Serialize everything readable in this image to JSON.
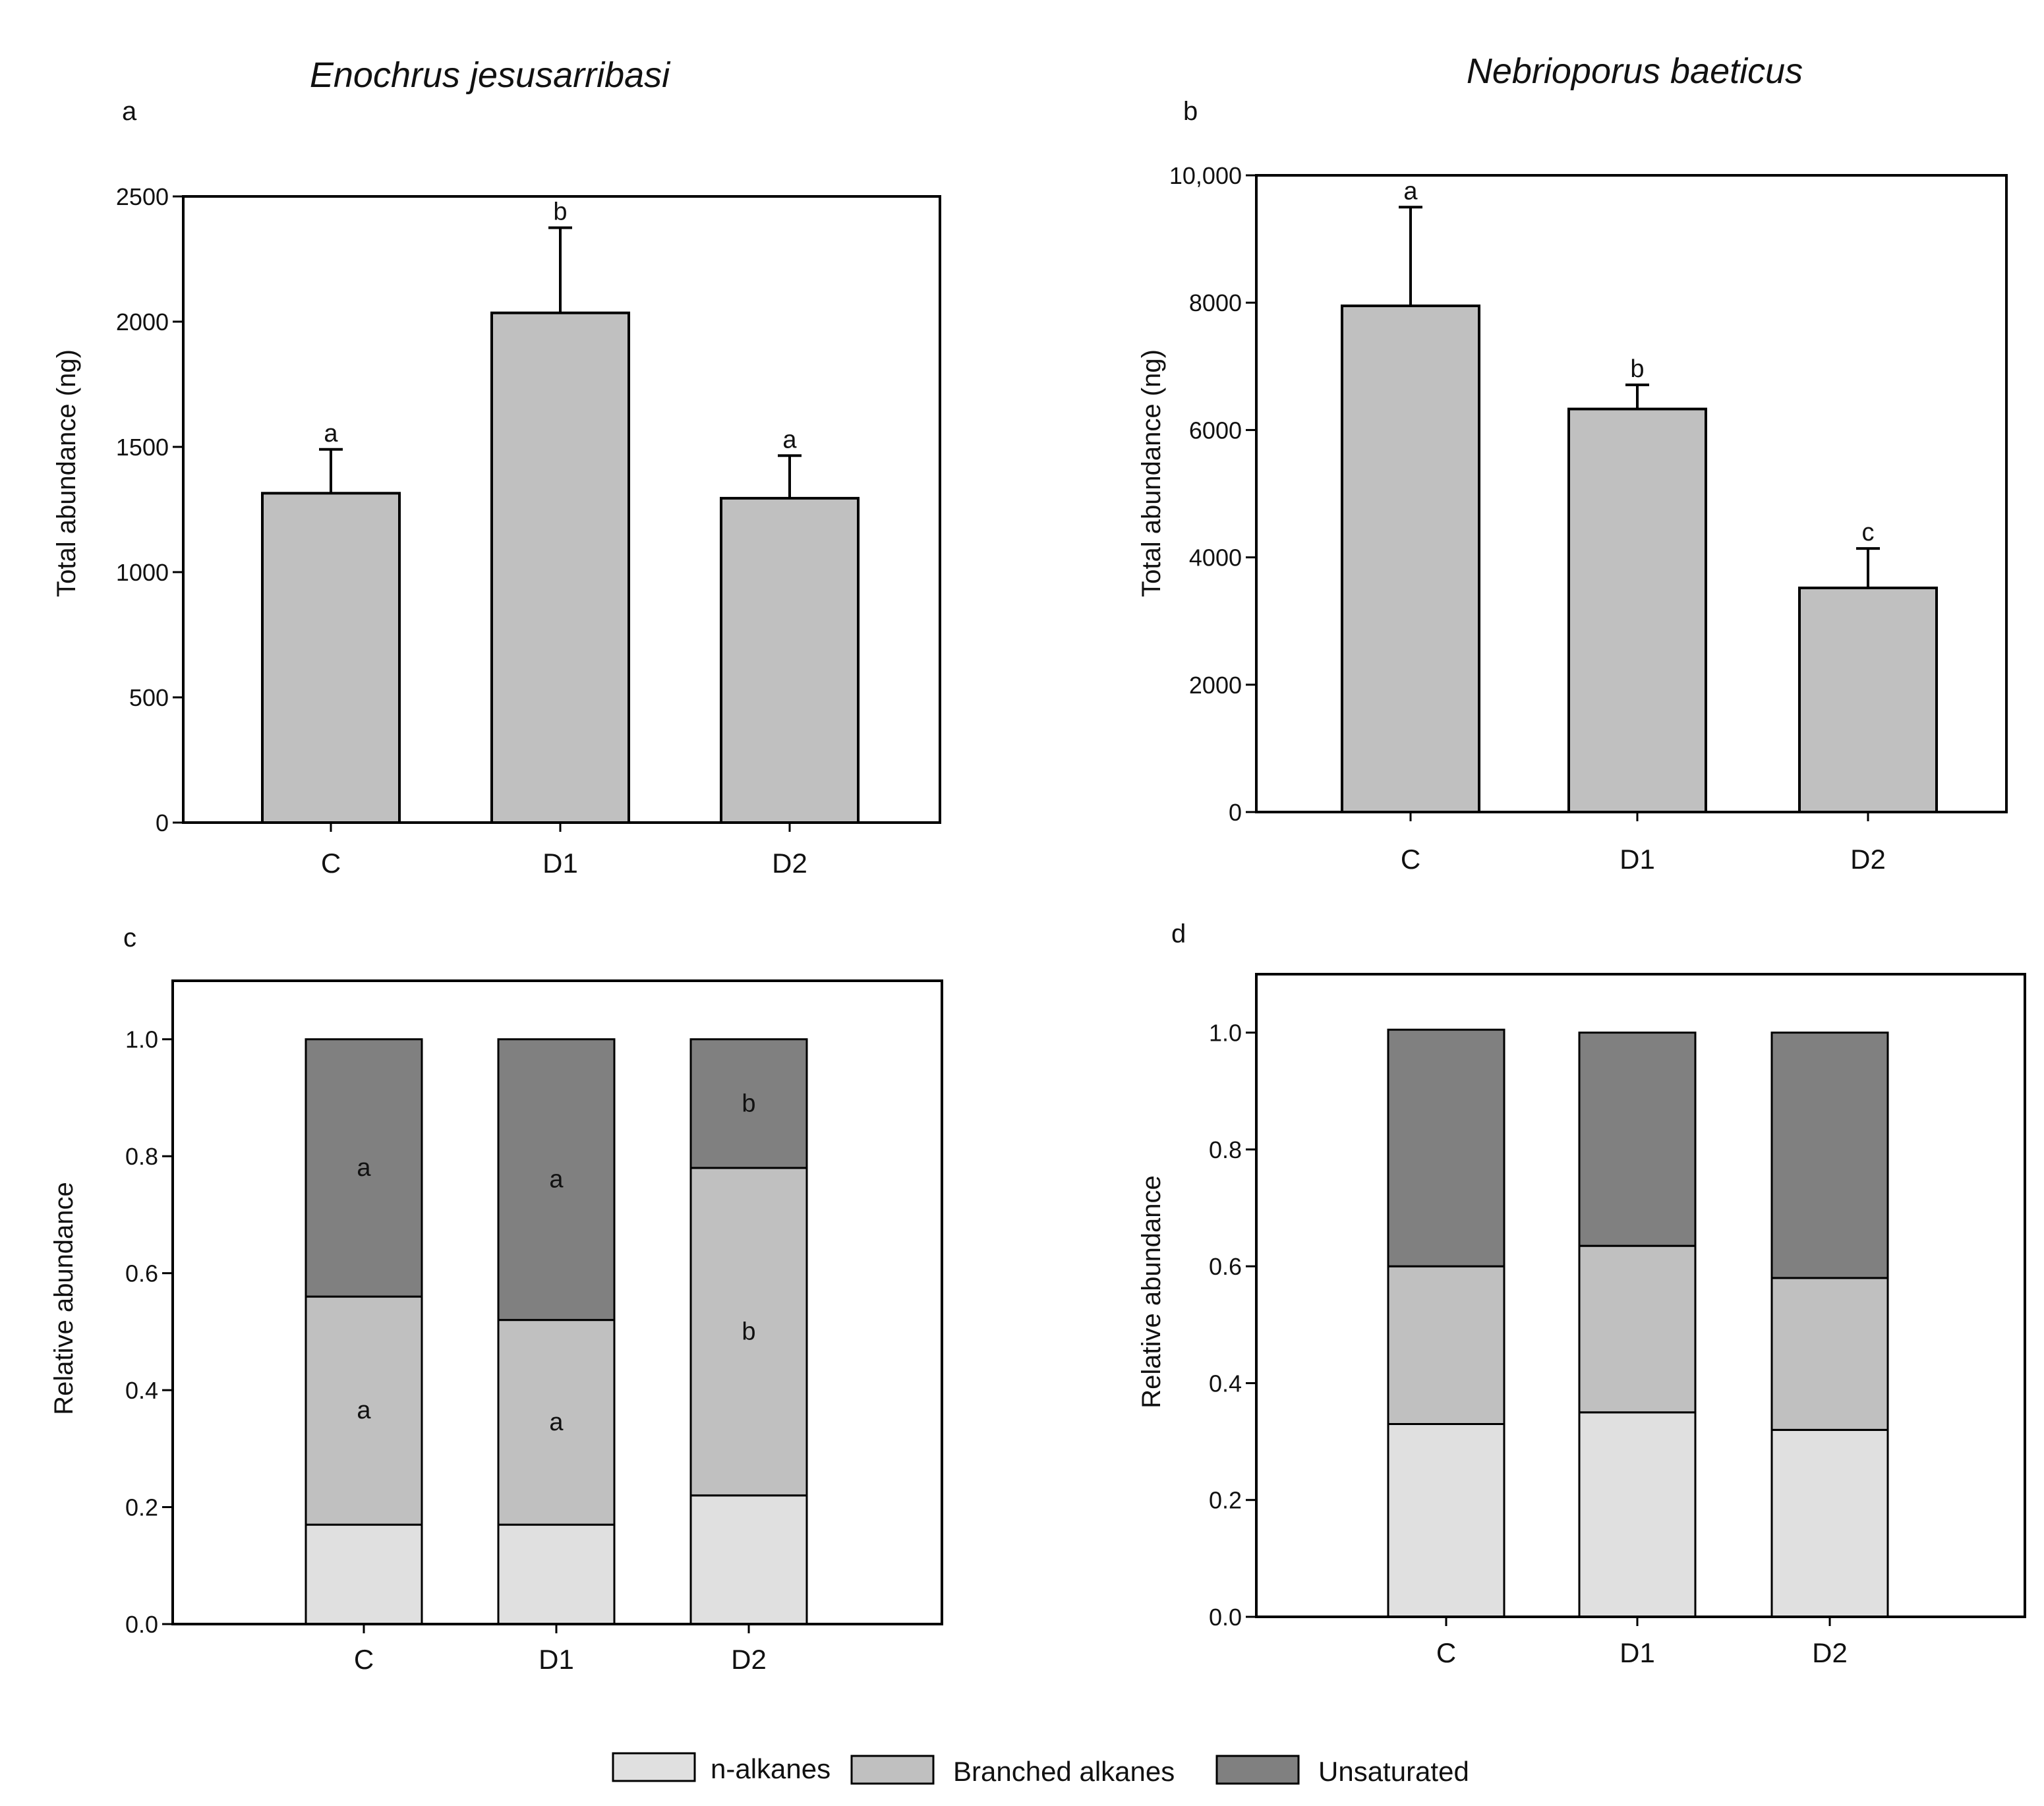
{
  "figure": {
    "legend": [
      {
        "key": "n_alkanes",
        "label": "n-alkanes",
        "color": "#e0e0e0"
      },
      {
        "key": "branched",
        "label": "Branched alkanes",
        "color": "#c0c0c0"
      },
      {
        "key": "unsaturated",
        "label": "Unsaturated",
        "color": "#808080"
      }
    ]
  },
  "chart_data": [
    {
      "id": "a",
      "type": "bar",
      "panel_label": "a",
      "title": "Enochrus jesusarribasi",
      "ylabel": "Total abundance (ng)",
      "xlabel": "",
      "ylim": [
        0,
        2500
      ],
      "yticks": [
        0,
        500,
        1000,
        1500,
        2000,
        2500
      ],
      "ytick_labels": [
        "0",
        "500",
        "1000",
        "1500",
        "2000",
        "2500"
      ],
      "categories": [
        "C",
        "D1",
        "D2"
      ],
      "values": [
        1315,
        2035,
        1295
      ],
      "errors": [
        175,
        340,
        170
      ],
      "letters": [
        "a",
        "b",
        "a"
      ],
      "color": "#c0c0c0",
      "grid": false
    },
    {
      "id": "b",
      "type": "bar",
      "panel_label": "b",
      "title": "Nebrioporus baeticus",
      "ylabel": "Total abundance (ng)",
      "xlabel": "",
      "ylim": [
        0,
        10000
      ],
      "yticks": [
        0,
        2000,
        4000,
        6000,
        8000,
        10000
      ],
      "ytick_labels": [
        "0",
        "2000",
        "4000",
        "6000",
        "8000",
        "10,000"
      ],
      "categories": [
        "C",
        "D1",
        "D2"
      ],
      "values": [
        7950,
        6330,
        3520
      ],
      "errors": [
        1550,
        380,
        620
      ],
      "letters": [
        "a",
        "b",
        "c"
      ],
      "color": "#c0c0c0",
      "grid": false
    },
    {
      "id": "c",
      "type": "bar",
      "stacked": true,
      "panel_label": "c",
      "ylabel": "Relative abundance",
      "xlabel": "",
      "ylim": [
        0,
        1.1
      ],
      "yticks": [
        0,
        0.2,
        0.4,
        0.6,
        0.8,
        1.0
      ],
      "ytick_labels": [
        "0.0",
        "0.2",
        "0.4",
        "0.6",
        "0.8",
        "1.0"
      ],
      "categories": [
        "C",
        "D1",
        "D2"
      ],
      "series": [
        {
          "name": "n-alkanes",
          "values": [
            0.17,
            0.17,
            0.22
          ],
          "letters": [
            "",
            "",
            ""
          ]
        },
        {
          "name": "Branched alkanes",
          "values": [
            0.39,
            0.35,
            0.56
          ],
          "letters": [
            "a",
            "a",
            "b"
          ]
        },
        {
          "name": "Unsaturated",
          "values": [
            0.44,
            0.48,
            0.22
          ],
          "letters": [
            "a",
            "a",
            "b"
          ]
        }
      ],
      "grid": false
    },
    {
      "id": "d",
      "type": "bar",
      "stacked": true,
      "panel_label": "d",
      "ylabel": "Relative abundance",
      "xlabel": "",
      "ylim": [
        0,
        1.1
      ],
      "yticks": [
        0,
        0.2,
        0.4,
        0.6,
        0.8,
        1.0
      ],
      "ytick_labels": [
        "0.0",
        "0.2",
        "0.4",
        "0.6",
        "0.8",
        "1.0"
      ],
      "categories": [
        "C",
        "D1",
        "D2"
      ],
      "series": [
        {
          "name": "n-alkanes",
          "values": [
            0.33,
            0.35,
            0.32
          ],
          "letters": [
            "",
            "",
            ""
          ]
        },
        {
          "name": "Branched alkanes",
          "values": [
            0.27,
            0.285,
            0.26
          ],
          "letters": [
            "",
            "",
            ""
          ]
        },
        {
          "name": "Unsaturated",
          "values": [
            0.405,
            0.365,
            0.42
          ],
          "letters": [
            "",
            "",
            ""
          ]
        }
      ],
      "grid": false
    }
  ]
}
